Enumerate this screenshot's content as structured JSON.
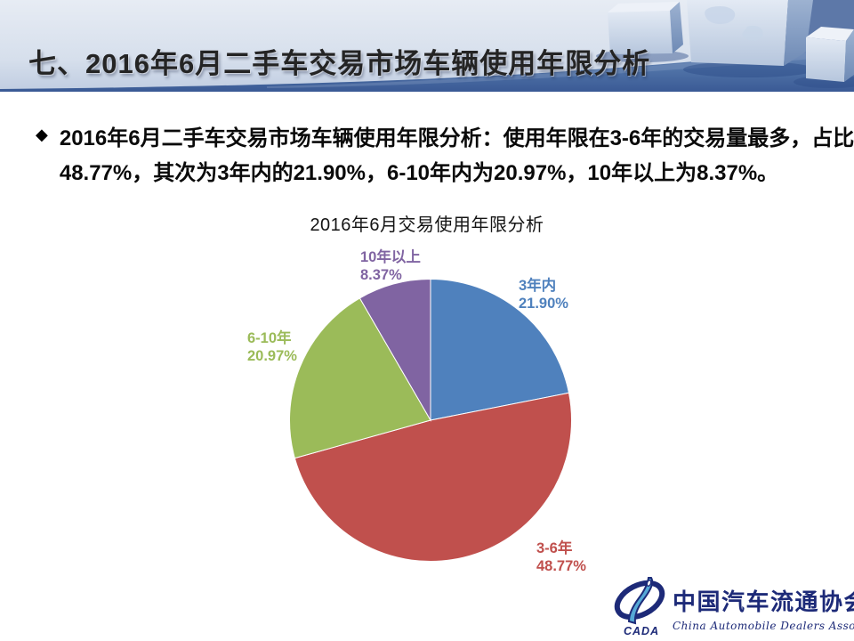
{
  "header": {
    "title": "七、2016年6月二手车交易市场车辆使用年限分析"
  },
  "summary": {
    "bullet": "◆",
    "line1": "2016年6月二手车交易市场车辆使用年限分析：使用年限在3-6年的交易量最多，占比为",
    "line2": "48.77%，其次为3年内的21.90%，6-10年内为20.97%，10年以上为8.37%。"
  },
  "chart_data": {
    "type": "pie",
    "title": "2016年6月交易使用年限分析",
    "start_angle_deg": 0,
    "direction": "clockwise",
    "legend_position": "none",
    "labels_position": "outside",
    "slices": [
      {
        "label": "3年内",
        "value": 21.9,
        "pct_label": "21.90%",
        "color": "#4F81BD"
      },
      {
        "label": "3-6年",
        "value": 48.77,
        "pct_label": "48.77%",
        "color": "#C0504D"
      },
      {
        "label": "6-10年",
        "value": 20.97,
        "pct_label": "20.97%",
        "color": "#9BBB59"
      },
      {
        "label": "10年以上",
        "value": 8.37,
        "pct_label": "8.37%",
        "color": "#8064A2"
      }
    ]
  },
  "logo": {
    "acronym": "CADA",
    "chinese": "中国汽车流通协会",
    "english": "China Automobile Dealers Association",
    "navy": "#1d2a78",
    "light_blue": "#55a8d6"
  }
}
